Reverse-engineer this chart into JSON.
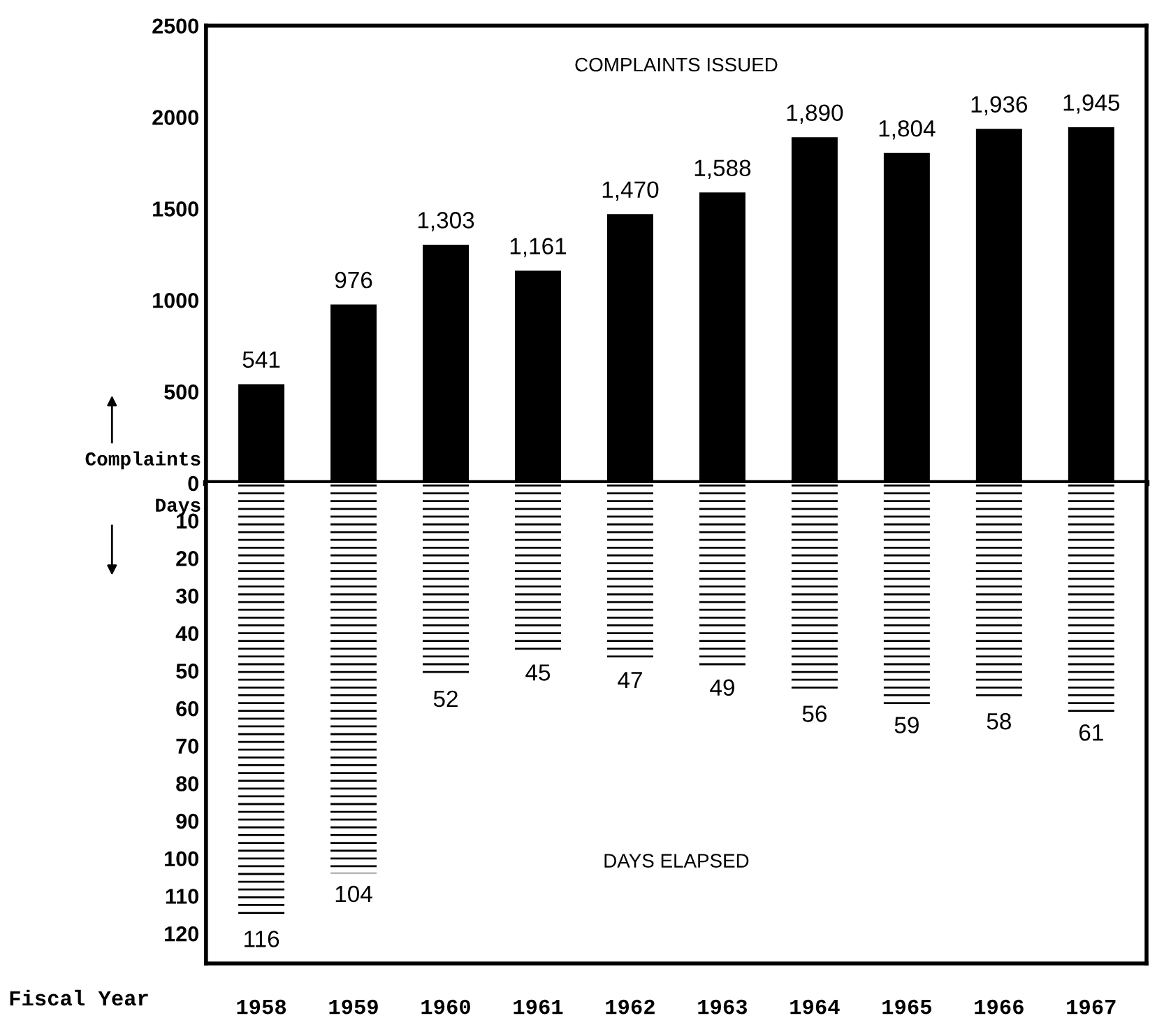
{
  "chart_data": [
    {
      "type": "bar",
      "title": "COMPLAINTS ISSUED",
      "categories": [
        "1958",
        "1959",
        "1960",
        "1961",
        "1962",
        "1963",
        "1964",
        "1965",
        "1966",
        "1967"
      ],
      "values": [
        541,
        976,
        1303,
        1161,
        1470,
        1588,
        1890,
        1804,
        1936,
        1945
      ],
      "value_labels": [
        "541",
        "976",
        "1,303",
        "1,161",
        "1,470",
        "1,588",
        "1,890",
        "1,804",
        "1,936",
        "1,945"
      ],
      "color": "#000000",
      "ylim": [
        0,
        2500
      ],
      "yticks": [
        0,
        500,
        1000,
        1500,
        2000,
        2500
      ],
      "tick_labels": "y",
      "annotations": [
        "Complaints"
      ]
    },
    {
      "type": "bar",
      "title": "DAYS ELAPSED",
      "xlabel": "Fiscal Year",
      "categories": [
        "1958",
        "1959",
        "1960",
        "1961",
        "1962",
        "1963",
        "1964",
        "1965",
        "1966",
        "1967"
      ],
      "values": [
        116,
        104,
        52,
        45,
        47,
        49,
        56,
        59,
        58,
        61
      ],
      "data_labels": true,
      "color": "#000000",
      "ylim": [
        128,
        0
      ],
      "yticks": [
        10,
        20,
        30,
        40,
        50,
        60,
        70,
        80,
        90,
        100,
        110,
        120
      ],
      "annotations": [
        "Days"
      ]
    }
  ]
}
